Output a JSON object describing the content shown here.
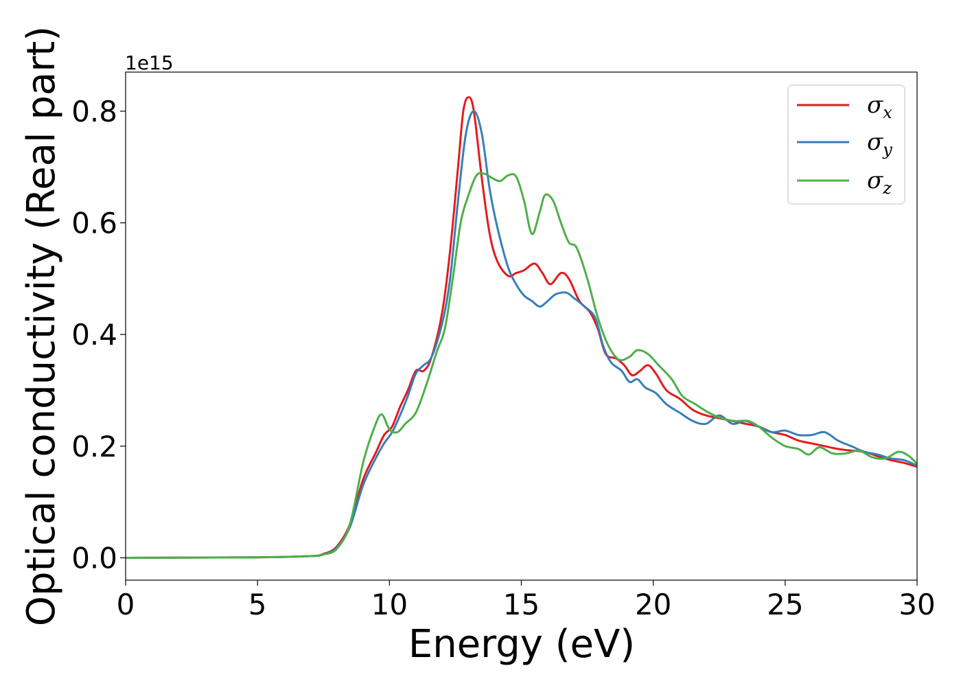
{
  "chart_data": {
    "type": "line",
    "title": "",
    "xlabel": "Energy (eV)",
    "ylabel": "Optical conductivity (Real part)",
    "y_offset_text": "1e15",
    "xlim": [
      0,
      30
    ],
    "ylim": [
      -0.04,
      0.87
    ],
    "xticks": [
      0,
      5,
      10,
      15,
      20,
      25,
      30
    ],
    "xtick_labels": [
      "0",
      "5",
      "10",
      "15",
      "20",
      "25",
      "30"
    ],
    "yticks": [
      0.0,
      0.2,
      0.4,
      0.6,
      0.8
    ],
    "ytick_labels": [
      "0.0",
      "0.2",
      "0.4",
      "0.6",
      "0.8"
    ],
    "grid": false,
    "legend": {
      "position": "top-right",
      "entries": [
        "σ",
        "σ",
        "σ"
      ],
      "subscripts": [
        "x",
        "y",
        "z"
      ]
    },
    "series": [
      {
        "name": "σx",
        "color": "#e41a1c",
        "points": [
          [
            0,
            0.0
          ],
          [
            5,
            0.001
          ],
          [
            7,
            0.003
          ],
          [
            7.5,
            0.007
          ],
          [
            8,
            0.02
          ],
          [
            8.5,
            0.06
          ],
          [
            9,
            0.14
          ],
          [
            9.5,
            0.19
          ],
          [
            9.8,
            0.22
          ],
          [
            10.1,
            0.235
          ],
          [
            10.4,
            0.27
          ],
          [
            10.7,
            0.3
          ],
          [
            11.0,
            0.335
          ],
          [
            11.3,
            0.335
          ],
          [
            11.6,
            0.36
          ],
          [
            12.0,
            0.44
          ],
          [
            12.3,
            0.55
          ],
          [
            12.6,
            0.7
          ],
          [
            12.8,
            0.8
          ],
          [
            13.0,
            0.825
          ],
          [
            13.2,
            0.8
          ],
          [
            13.5,
            0.68
          ],
          [
            13.8,
            0.58
          ],
          [
            14.1,
            0.53
          ],
          [
            14.5,
            0.505
          ],
          [
            14.8,
            0.51
          ],
          [
            15.1,
            0.515
          ],
          [
            15.5,
            0.527
          ],
          [
            15.8,
            0.51
          ],
          [
            16.1,
            0.49
          ],
          [
            16.5,
            0.51
          ],
          [
            16.8,
            0.5
          ],
          [
            17.2,
            0.46
          ],
          [
            17.6,
            0.44
          ],
          [
            17.9,
            0.41
          ],
          [
            18.2,
            0.365
          ],
          [
            18.6,
            0.357
          ],
          [
            18.9,
            0.345
          ],
          [
            19.2,
            0.327
          ],
          [
            19.5,
            0.335
          ],
          [
            19.8,
            0.345
          ],
          [
            20.1,
            0.33
          ],
          [
            20.5,
            0.3
          ],
          [
            21.0,
            0.285
          ],
          [
            21.5,
            0.265
          ],
          [
            22.0,
            0.255
          ],
          [
            22.5,
            0.25
          ],
          [
            23.0,
            0.245
          ],
          [
            23.5,
            0.24
          ],
          [
            24.0,
            0.235
          ],
          [
            24.5,
            0.225
          ],
          [
            25.0,
            0.22
          ],
          [
            25.5,
            0.21
          ],
          [
            26.0,
            0.205
          ],
          [
            26.5,
            0.2
          ],
          [
            27.0,
            0.195
          ],
          [
            27.5,
            0.192
          ],
          [
            28.0,
            0.19
          ],
          [
            28.5,
            0.182
          ],
          [
            29.0,
            0.175
          ],
          [
            29.5,
            0.17
          ],
          [
            30.0,
            0.163
          ]
        ]
      },
      {
        "name": "σy",
        "color": "#377eb8",
        "points": [
          [
            0,
            0.0
          ],
          [
            5,
            0.001
          ],
          [
            7,
            0.003
          ],
          [
            7.5,
            0.006
          ],
          [
            8,
            0.018
          ],
          [
            8.5,
            0.055
          ],
          [
            9,
            0.13
          ],
          [
            9.5,
            0.18
          ],
          [
            9.8,
            0.205
          ],
          [
            10.1,
            0.225
          ],
          [
            10.4,
            0.255
          ],
          [
            10.7,
            0.29
          ],
          [
            11.0,
            0.33
          ],
          [
            11.3,
            0.345
          ],
          [
            11.6,
            0.36
          ],
          [
            12.0,
            0.42
          ],
          [
            12.3,
            0.5
          ],
          [
            12.6,
            0.64
          ],
          [
            12.9,
            0.76
          ],
          [
            13.2,
            0.8
          ],
          [
            13.5,
            0.76
          ],
          [
            13.8,
            0.66
          ],
          [
            14.1,
            0.59
          ],
          [
            14.5,
            0.52
          ],
          [
            14.8,
            0.49
          ],
          [
            15.1,
            0.47
          ],
          [
            15.4,
            0.46
          ],
          [
            15.7,
            0.45
          ],
          [
            16.0,
            0.46
          ],
          [
            16.3,
            0.472
          ],
          [
            16.7,
            0.475
          ],
          [
            17.0,
            0.465
          ],
          [
            17.4,
            0.45
          ],
          [
            17.8,
            0.43
          ],
          [
            18.1,
            0.38
          ],
          [
            18.4,
            0.35
          ],
          [
            18.8,
            0.335
          ],
          [
            19.1,
            0.315
          ],
          [
            19.4,
            0.32
          ],
          [
            19.7,
            0.305
          ],
          [
            20.1,
            0.295
          ],
          [
            20.5,
            0.275
          ],
          [
            21.0,
            0.26
          ],
          [
            21.5,
            0.245
          ],
          [
            22.0,
            0.24
          ],
          [
            22.5,
            0.255
          ],
          [
            23.0,
            0.24
          ],
          [
            23.5,
            0.245
          ],
          [
            24.0,
            0.235
          ],
          [
            24.5,
            0.225
          ],
          [
            25.0,
            0.228
          ],
          [
            25.5,
            0.22
          ],
          [
            26.0,
            0.22
          ],
          [
            26.5,
            0.225
          ],
          [
            27.0,
            0.21
          ],
          [
            27.5,
            0.2
          ],
          [
            28.0,
            0.19
          ],
          [
            28.5,
            0.185
          ],
          [
            29.0,
            0.178
          ],
          [
            29.5,
            0.175
          ],
          [
            30.0,
            0.165
          ]
        ]
      },
      {
        "name": "σz",
        "color": "#4daf4a",
        "points": [
          [
            0,
            0.0
          ],
          [
            5,
            0.001
          ],
          [
            7,
            0.003
          ],
          [
            7.5,
            0.006
          ],
          [
            8,
            0.016
          ],
          [
            8.5,
            0.06
          ],
          [
            9,
            0.17
          ],
          [
            9.4,
            0.23
          ],
          [
            9.7,
            0.257
          ],
          [
            10.0,
            0.23
          ],
          [
            10.3,
            0.225
          ],
          [
            10.6,
            0.24
          ],
          [
            11.0,
            0.26
          ],
          [
            11.4,
            0.31
          ],
          [
            11.8,
            0.37
          ],
          [
            12.1,
            0.41
          ],
          [
            12.4,
            0.5
          ],
          [
            12.7,
            0.6
          ],
          [
            13.0,
            0.65
          ],
          [
            13.3,
            0.685
          ],
          [
            13.6,
            0.688
          ],
          [
            13.9,
            0.68
          ],
          [
            14.2,
            0.675
          ],
          [
            14.5,
            0.685
          ],
          [
            14.8,
            0.683
          ],
          [
            15.1,
            0.64
          ],
          [
            15.4,
            0.58
          ],
          [
            15.7,
            0.62
          ],
          [
            15.9,
            0.65
          ],
          [
            16.2,
            0.64
          ],
          [
            16.5,
            0.6
          ],
          [
            16.8,
            0.565
          ],
          [
            17.1,
            0.555
          ],
          [
            17.5,
            0.5
          ],
          [
            17.9,
            0.43
          ],
          [
            18.3,
            0.38
          ],
          [
            18.7,
            0.355
          ],
          [
            19.1,
            0.36
          ],
          [
            19.4,
            0.372
          ],
          [
            19.8,
            0.365
          ],
          [
            20.2,
            0.345
          ],
          [
            20.7,
            0.32
          ],
          [
            21.1,
            0.29
          ],
          [
            21.6,
            0.275
          ],
          [
            22.1,
            0.26
          ],
          [
            22.6,
            0.25
          ],
          [
            23.1,
            0.245
          ],
          [
            23.6,
            0.245
          ],
          [
            24.0,
            0.235
          ],
          [
            24.5,
            0.215
          ],
          [
            25.0,
            0.2
          ],
          [
            25.5,
            0.195
          ],
          [
            25.9,
            0.185
          ],
          [
            26.3,
            0.198
          ],
          [
            26.8,
            0.187
          ],
          [
            27.3,
            0.187
          ],
          [
            27.8,
            0.192
          ],
          [
            28.3,
            0.18
          ],
          [
            28.8,
            0.178
          ],
          [
            29.3,
            0.19
          ],
          [
            29.7,
            0.182
          ],
          [
            30.0,
            0.168
          ]
        ]
      }
    ]
  }
}
